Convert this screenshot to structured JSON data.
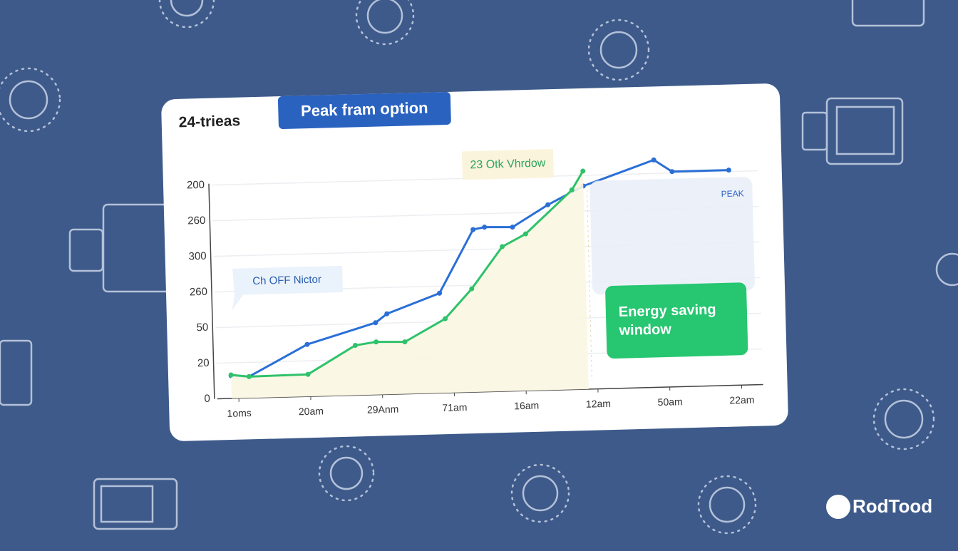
{
  "chart_data": {
    "type": "line",
    "title": "24-trieas",
    "categories": [
      "1oms",
      "20am",
      "29Anm",
      "71am",
      "16am",
      "12am",
      "50am",
      "22am"
    ],
    "xlim": [
      -0.3,
      7.3
    ],
    "xticks": [
      {
        "value": 0,
        "label": "1oms"
      },
      {
        "value": 1,
        "label": "20am"
      },
      {
        "value": 2,
        "label": "29Anm"
      },
      {
        "value": 3,
        "label": "71am"
      },
      {
        "value": 4,
        "label": "16am"
      },
      {
        "value": 5,
        "label": "12am"
      },
      {
        "value": 6,
        "label": "50am"
      },
      {
        "value": 7,
        "label": "22am"
      }
    ],
    "ylim": [
      0,
      6.8
    ],
    "yticks": [
      {
        "value": 0,
        "label": "0"
      },
      {
        "value": 1,
        "label": "20"
      },
      {
        "value": 2,
        "label": "50"
      },
      {
        "value": 3,
        "label": "260"
      },
      {
        "value": 4,
        "label": "300"
      },
      {
        "value": 5,
        "label": "260"
      },
      {
        "value": 6,
        "label": "200"
      }
    ],
    "grid": true,
    "series": [
      {
        "color": "#2a6fd6",
        "x": [
          -0.1,
          0.15,
          0.97,
          1.93,
          2.09,
          2.83,
          3.32,
          3.48,
          3.87,
          4.37,
          4.87,
          5.86,
          6.11,
          6.9
        ],
        "values": [
          0.64,
          0.6,
          1.46,
          2.02,
          2.26,
          2.8,
          4.56,
          4.62,
          4.6,
          5.2,
          5.7,
          6.38,
          6.04,
          6.04
        ]
      },
      {
        "color": "#2ec26a",
        "fill": "#fbf6e2",
        "x": [
          -0.1,
          0.15,
          0.97,
          1.64,
          1.93,
          2.33,
          2.9,
          3.28,
          3.72,
          4.05,
          4.71,
          4.87
        ],
        "values": [
          0.66,
          0.6,
          0.62,
          1.4,
          1.48,
          1.46,
          2.08,
          2.9,
          4.06,
          4.4,
          5.6,
          6.12
        ]
      }
    ],
    "annotations": {
      "tag": "Peak fram option",
      "window": "23 Otk Vhrdow",
      "callout": "Ch OFF Nictor",
      "peak": "PEAK",
      "saving": [
        "Energy saving",
        "window"
      ]
    }
  },
  "brand": "RodTood"
}
